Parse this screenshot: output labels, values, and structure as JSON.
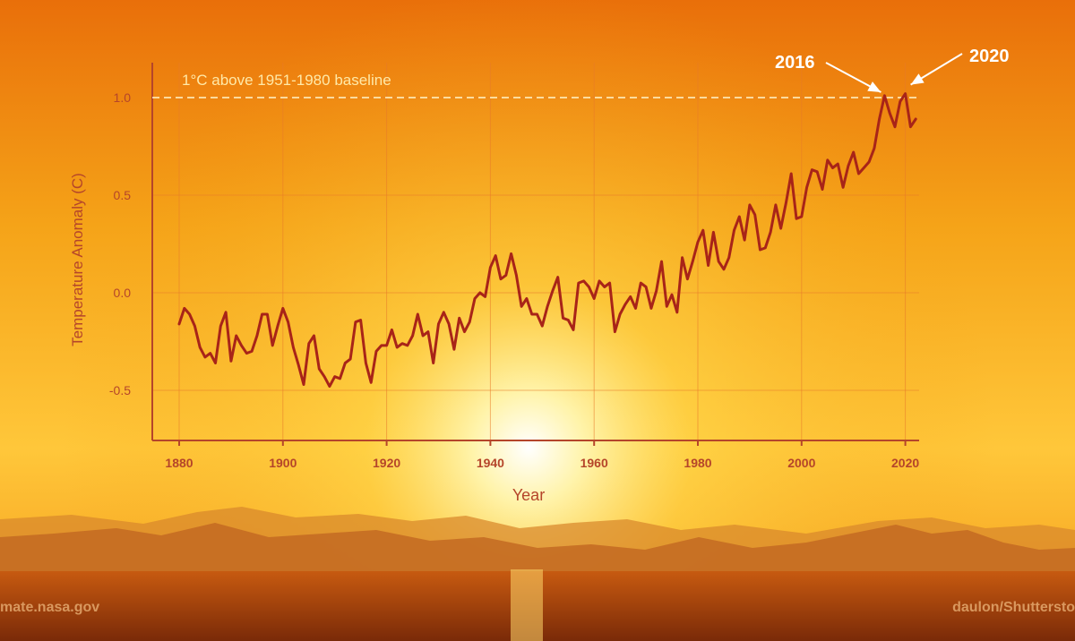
{
  "chart_data": {
    "type": "line",
    "xlabel": "Year",
    "ylabel": "Temperature Anomaly (C)",
    "xlim": [
      1880,
      2022
    ],
    "ylim": [
      -0.75,
      1.17
    ],
    "xticks": [
      1880,
      1900,
      1920,
      1940,
      1960,
      1980,
      2000,
      2020
    ],
    "yticks": [
      -0.5,
      0.0,
      0.5,
      1.0
    ],
    "ytick_labels": [
      "-0.5",
      "0.0",
      "0.5",
      "1.0"
    ],
    "grid": true,
    "reference_line": {
      "value": 1.0,
      "label": "1°C above 1951-1980 baseline"
    },
    "annotations": [
      {
        "label": "2016",
        "x": 2016,
        "y": 1.0
      },
      {
        "label": "2020",
        "x": 2020,
        "y": 1.02
      }
    ],
    "series": [
      {
        "color": "#a82418",
        "x": [
          1880,
          1881,
          1882,
          1883,
          1884,
          1885,
          1886,
          1887,
          1888,
          1889,
          1890,
          1891,
          1892,
          1893,
          1894,
          1895,
          1896,
          1897,
          1898,
          1899,
          1900,
          1901,
          1902,
          1903,
          1904,
          1905,
          1906,
          1907,
          1908,
          1909,
          1910,
          1911,
          1912,
          1913,
          1914,
          1915,
          1916,
          1917,
          1918,
          1919,
          1920,
          1921,
          1922,
          1923,
          1924,
          1925,
          1926,
          1927,
          1928,
          1929,
          1930,
          1931,
          1932,
          1933,
          1934,
          1935,
          1936,
          1937,
          1938,
          1939,
          1940,
          1941,
          1942,
          1943,
          1944,
          1945,
          1946,
          1947,
          1948,
          1949,
          1950,
          1951,
          1952,
          1953,
          1954,
          1955,
          1956,
          1957,
          1958,
          1959,
          1960,
          1961,
          1962,
          1963,
          1964,
          1965,
          1966,
          1967,
          1968,
          1969,
          1970,
          1971,
          1972,
          1973,
          1974,
          1975,
          1976,
          1977,
          1978,
          1979,
          1980,
          1981,
          1982,
          1983,
          1984,
          1985,
          1986,
          1987,
          1988,
          1989,
          1990,
          1991,
          1992,
          1993,
          1994,
          1995,
          1996,
          1997,
          1998,
          1999,
          2000,
          2001,
          2002,
          2003,
          2004,
          2005,
          2006,
          2007,
          2008,
          2009,
          2010,
          2011,
          2012,
          2013,
          2014,
          2015,
          2016,
          2017,
          2018,
          2019,
          2020,
          2021,
          2022
        ],
        "y": [
          -0.16,
          -0.08,
          -0.11,
          -0.17,
          -0.28,
          -0.33,
          -0.31,
          -0.36,
          -0.17,
          -0.1,
          -0.35,
          -0.22,
          -0.27,
          -0.31,
          -0.3,
          -0.22,
          -0.11,
          -0.11,
          -0.27,
          -0.17,
          -0.08,
          -0.15,
          -0.28,
          -0.37,
          -0.47,
          -0.26,
          -0.22,
          -0.39,
          -0.43,
          -0.48,
          -0.43,
          -0.44,
          -0.36,
          -0.34,
          -0.15,
          -0.14,
          -0.36,
          -0.46,
          -0.3,
          -0.27,
          -0.27,
          -0.19,
          -0.28,
          -0.26,
          -0.27,
          -0.22,
          -0.11,
          -0.22,
          -0.2,
          -0.36,
          -0.16,
          -0.1,
          -0.16,
          -0.29,
          -0.13,
          -0.2,
          -0.15,
          -0.03,
          0.0,
          -0.02,
          0.13,
          0.19,
          0.07,
          0.09,
          0.2,
          0.09,
          -0.07,
          -0.03,
          -0.11,
          -0.11,
          -0.17,
          -0.07,
          0.01,
          0.08,
          -0.13,
          -0.14,
          -0.19,
          0.05,
          0.06,
          0.03,
          -0.03,
          0.06,
          0.03,
          0.05,
          -0.2,
          -0.11,
          -0.06,
          -0.02,
          -0.08,
          0.05,
          0.03,
          -0.08,
          0.01,
          0.16,
          -0.07,
          -0.01,
          -0.1,
          0.18,
          0.07,
          0.16,
          0.26,
          0.32,
          0.14,
          0.31,
          0.16,
          0.12,
          0.18,
          0.32,
          0.39,
          0.27,
          0.45,
          0.4,
          0.22,
          0.23,
          0.31,
          0.45,
          0.33,
          0.46,
          0.61,
          0.38,
          0.39,
          0.54,
          0.63,
          0.62,
          0.53,
          0.68,
          0.64,
          0.66,
          0.54,
          0.65,
          0.72,
          0.61,
          0.64,
          0.67,
          0.74,
          0.89,
          1.01,
          0.92,
          0.85,
          0.98,
          1.02,
          0.85,
          0.89
        ]
      }
    ]
  },
  "credits": {
    "left": "mate.nasa.gov",
    "right": "daulon/Shuttersto"
  }
}
